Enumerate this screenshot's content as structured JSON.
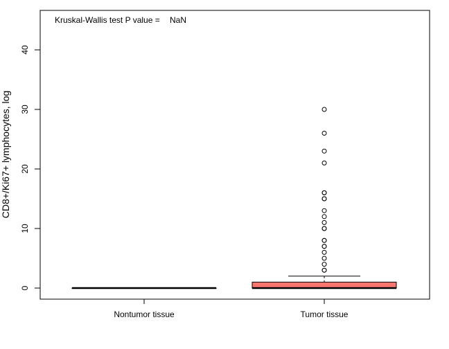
{
  "chart_data": {
    "type": "boxplot",
    "title": "",
    "xlabel": "",
    "ylabel": "CD8+/Ki67+ lymphocytes, log",
    "ylim": [
      0,
      45
    ],
    "yticks": [
      0,
      10,
      20,
      30,
      40
    ],
    "grid": false,
    "annotation": {
      "label": "Kruskal-Wallis test P value =",
      "value": "NaN"
    },
    "categories": [
      "Nontumor tissue",
      "Tumor tissue"
    ],
    "boxes": [
      {
        "category": "Nontumor tissue",
        "min": 0,
        "q1": 0,
        "median": 0,
        "q3": 0,
        "max": 0,
        "outliers": [],
        "fill": "#ffffff"
      },
      {
        "category": "Tumor tissue",
        "min": 0,
        "q1": 0,
        "median": 0,
        "q3": 1,
        "max": 2,
        "outliers": [
          3,
          3,
          4,
          5,
          6,
          7,
          7,
          8,
          8,
          10,
          10,
          11,
          12,
          13,
          15,
          15,
          16,
          16,
          21,
          23,
          26,
          30
        ],
        "fill": "#f8766d"
      }
    ]
  }
}
